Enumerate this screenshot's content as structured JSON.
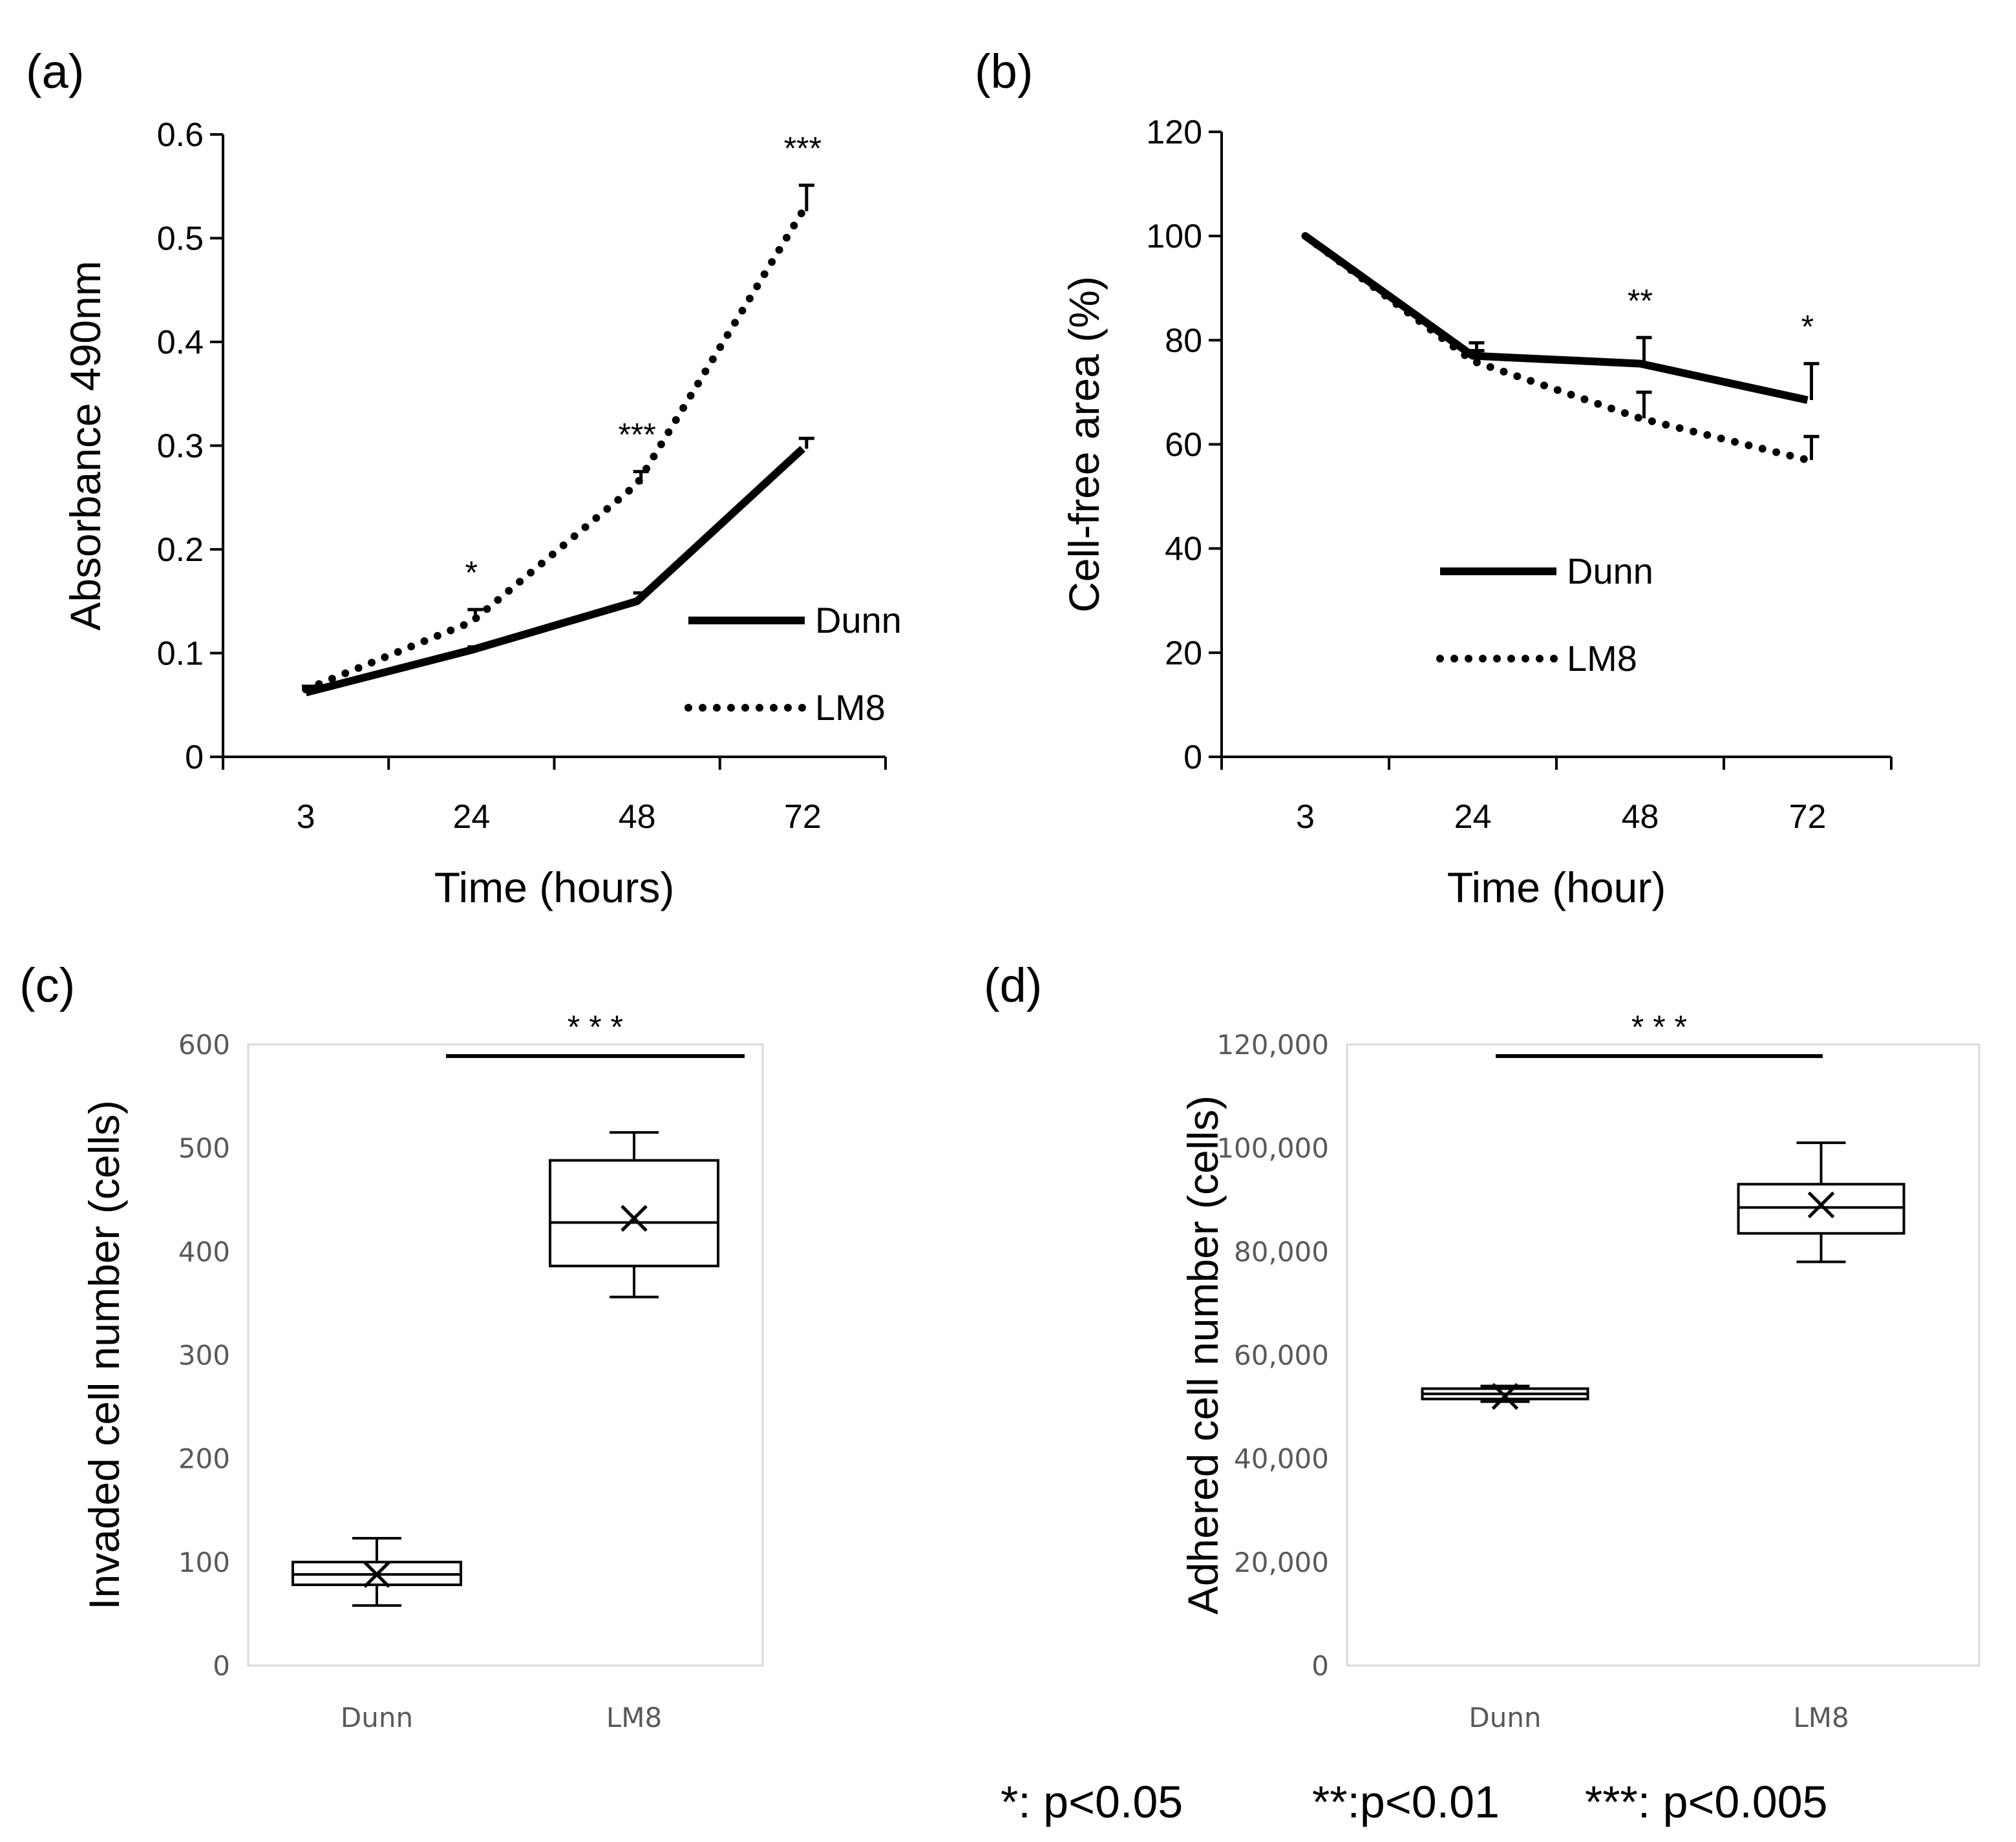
{
  "footnote": {
    "one": "*: p<0.05",
    "two": "**:p<0.01",
    "three": "***: p<0.005"
  },
  "chart_data": [
    {
      "panel": "(a)",
      "type": "line",
      "title": "",
      "xlabel": "Time (hours)",
      "ylabel": "Absorbance 490nm",
      "categories": [
        "3",
        "24",
        "48",
        "72"
      ],
      "ylim": [
        0,
        0.6
      ],
      "yticks": [
        "0",
        "0.1",
        "0.2",
        "0.3",
        "0.4",
        "0.5",
        "0.6"
      ],
      "series": [
        {
          "name": "Dunn",
          "style": "solid",
          "values": [
            0.062,
            0.103,
            0.15,
            0.297
          ],
          "errors": [
            0.006,
            0.003,
            0.008,
            0.01
          ]
        },
        {
          "name": "LM8",
          "style": "dotted",
          "values": [
            0.065,
            0.13,
            0.263,
            0.526
          ],
          "errors": [
            0.003,
            0.012,
            0.012,
            0.025
          ]
        }
      ],
      "annotations": [
        "",
        "*",
        "***",
        "***"
      ],
      "legend": "lower-right",
      "grid": false
    },
    {
      "panel": "(b)",
      "type": "line",
      "title": "",
      "xlabel": "Time (hour)",
      "ylabel": "Cell-free area (%)",
      "categories": [
        "3",
        "24",
        "48",
        "72"
      ],
      "ylim": [
        0,
        120
      ],
      "yticks": [
        "0",
        "20",
        "40",
        "60",
        "80",
        "100",
        "120"
      ],
      "series": [
        {
          "name": "Dunn",
          "style": "solid",
          "values": [
            100,
            77,
            75.5,
            68.5
          ],
          "errors": [
            0,
            2.5,
            5,
            7
          ]
        },
        {
          "name": "LM8",
          "style": "dotted",
          "values": [
            100,
            76,
            65,
            57
          ],
          "errors": [
            0,
            2,
            5,
            4.5
          ]
        }
      ],
      "annotations": [
        "",
        "",
        "**",
        "*"
      ],
      "legend": "lower-left",
      "grid": false
    },
    {
      "panel": "(c)",
      "type": "box",
      "title": "",
      "xlabel": "",
      "ylabel": "Invaded cell number (cells)",
      "categories": [
        "Dunn",
        "LM8"
      ],
      "ylim": [
        0,
        600
      ],
      "yticks": [
        "0",
        "100",
        "200",
        "300",
        "400",
        "500",
        "600"
      ],
      "boxes": [
        {
          "name": "Dunn",
          "min": 58,
          "q1": 78,
          "median": 88,
          "q3": 100,
          "max": 123,
          "mean": 88
        },
        {
          "name": "LM8",
          "min": 356,
          "q1": 386,
          "median": 428,
          "q3": 488,
          "max": 515,
          "mean": 432
        }
      ],
      "significance": "* * *",
      "grid": false
    },
    {
      "panel": "(d)",
      "type": "box",
      "title": "",
      "xlabel": "",
      "ylabel": "Adhered cell number (cells)",
      "categories": [
        "Dunn",
        "LM8"
      ],
      "ylim": [
        0,
        120000
      ],
      "yticks": [
        "0",
        "20,000",
        "40,000",
        "60,000",
        "80,000",
        "100,000",
        "120,000"
      ],
      "boxes": [
        {
          "name": "Dunn",
          "min": 51000,
          "q1": 51500,
          "median": 52500,
          "q3": 53500,
          "max": 54000,
          "mean": 52000
        },
        {
          "name": "LM8",
          "min": 78000,
          "q1": 83500,
          "median": 88500,
          "q3": 93000,
          "max": 101000,
          "mean": 89000
        }
      ],
      "significance": "* * *",
      "grid": false
    }
  ]
}
